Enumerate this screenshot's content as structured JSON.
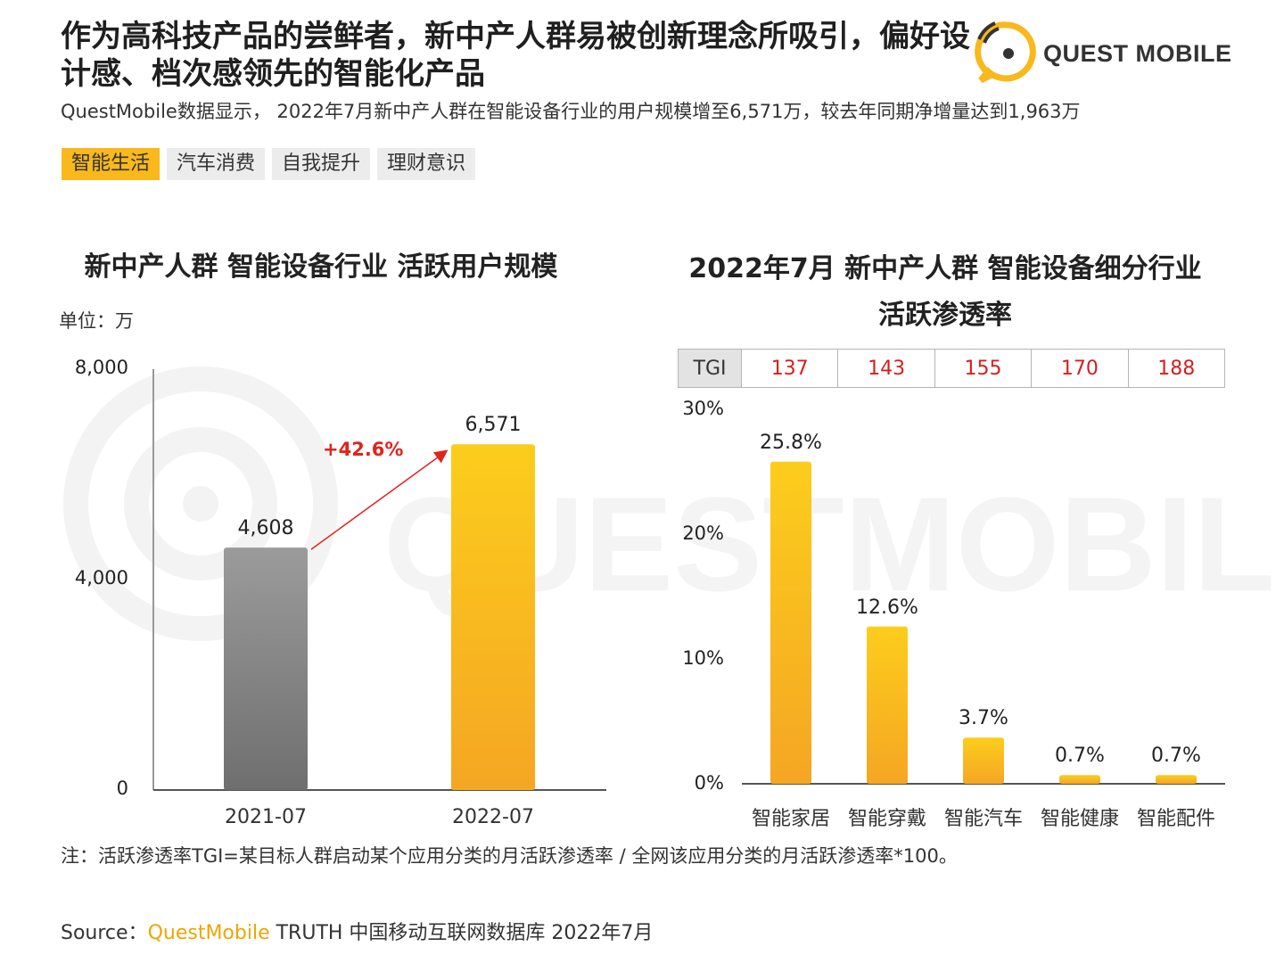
{
  "header": {
    "title": "作为高科技产品的尝鲜者，新中产人群易被创新理念所吸引，偏好设计感、档次感领先的智能化产品",
    "subtitle": "QuestMobile数据显示， 2022年7月新中产人群在智能设备行业的用户规模增至6,571万，较去年同期净增量达到1,963万",
    "logo_text": "QUEST MOBILE",
    "brand_color": "#f9b81b"
  },
  "tabs": [
    {
      "label": "智能生活",
      "active": true
    },
    {
      "label": "汽车消费",
      "active": false
    },
    {
      "label": "自我提升",
      "active": false
    },
    {
      "label": "理财意识",
      "active": false
    }
  ],
  "chart_data": [
    {
      "type": "bar",
      "title": "新中产人群 智能设备行业 活跃用户规模",
      "unit_label": "单位：万",
      "categories": [
        "2021-07",
        "2022-07"
      ],
      "values": [
        4608,
        6571
      ],
      "value_labels": [
        "4,608",
        "6,571"
      ],
      "ylim": [
        0,
        8000
      ],
      "yticks": [
        "0",
        "4,000",
        "8,000"
      ],
      "bar_colors": [
        "#8a8a8a",
        "#f9b81b"
      ],
      "annotation": "+42.6%",
      "annotation_color": "#e2231a",
      "grid": false
    },
    {
      "type": "bar",
      "title_line1": "2022年7月 新中产人群 智能设备细分行业",
      "title_line2": "活跃渗透率",
      "categories": [
        "智能家居",
        "智能穿戴",
        "智能汽车",
        "智能健康",
        "智能配件"
      ],
      "values": [
        25.8,
        12.6,
        3.7,
        0.7,
        0.7
      ],
      "value_labels": [
        "25.8%",
        "12.6%",
        "3.7%",
        "0.7%",
        "0.7%"
      ],
      "ylim": [
        0,
        30
      ],
      "yticks": [
        "0%",
        "10%",
        "20%",
        "30%"
      ],
      "bar_color": "#f9b81b",
      "tgi_label": "TGI",
      "tgi": [
        "137",
        "143",
        "155",
        "170",
        "188"
      ],
      "tgi_color": "#d81e1e",
      "grid": false
    }
  ],
  "footer": {
    "note": "注：活跃渗透率TGI=某目标人群启动某个应用分类的月活跃渗透率 / 全网该应用分类的月活跃渗透率*100。",
    "source_prefix": "Source：",
    "source_brand": "QuestMobile",
    "source_rest": " TRUTH 中国移动互联网数据库 2022年7月"
  }
}
